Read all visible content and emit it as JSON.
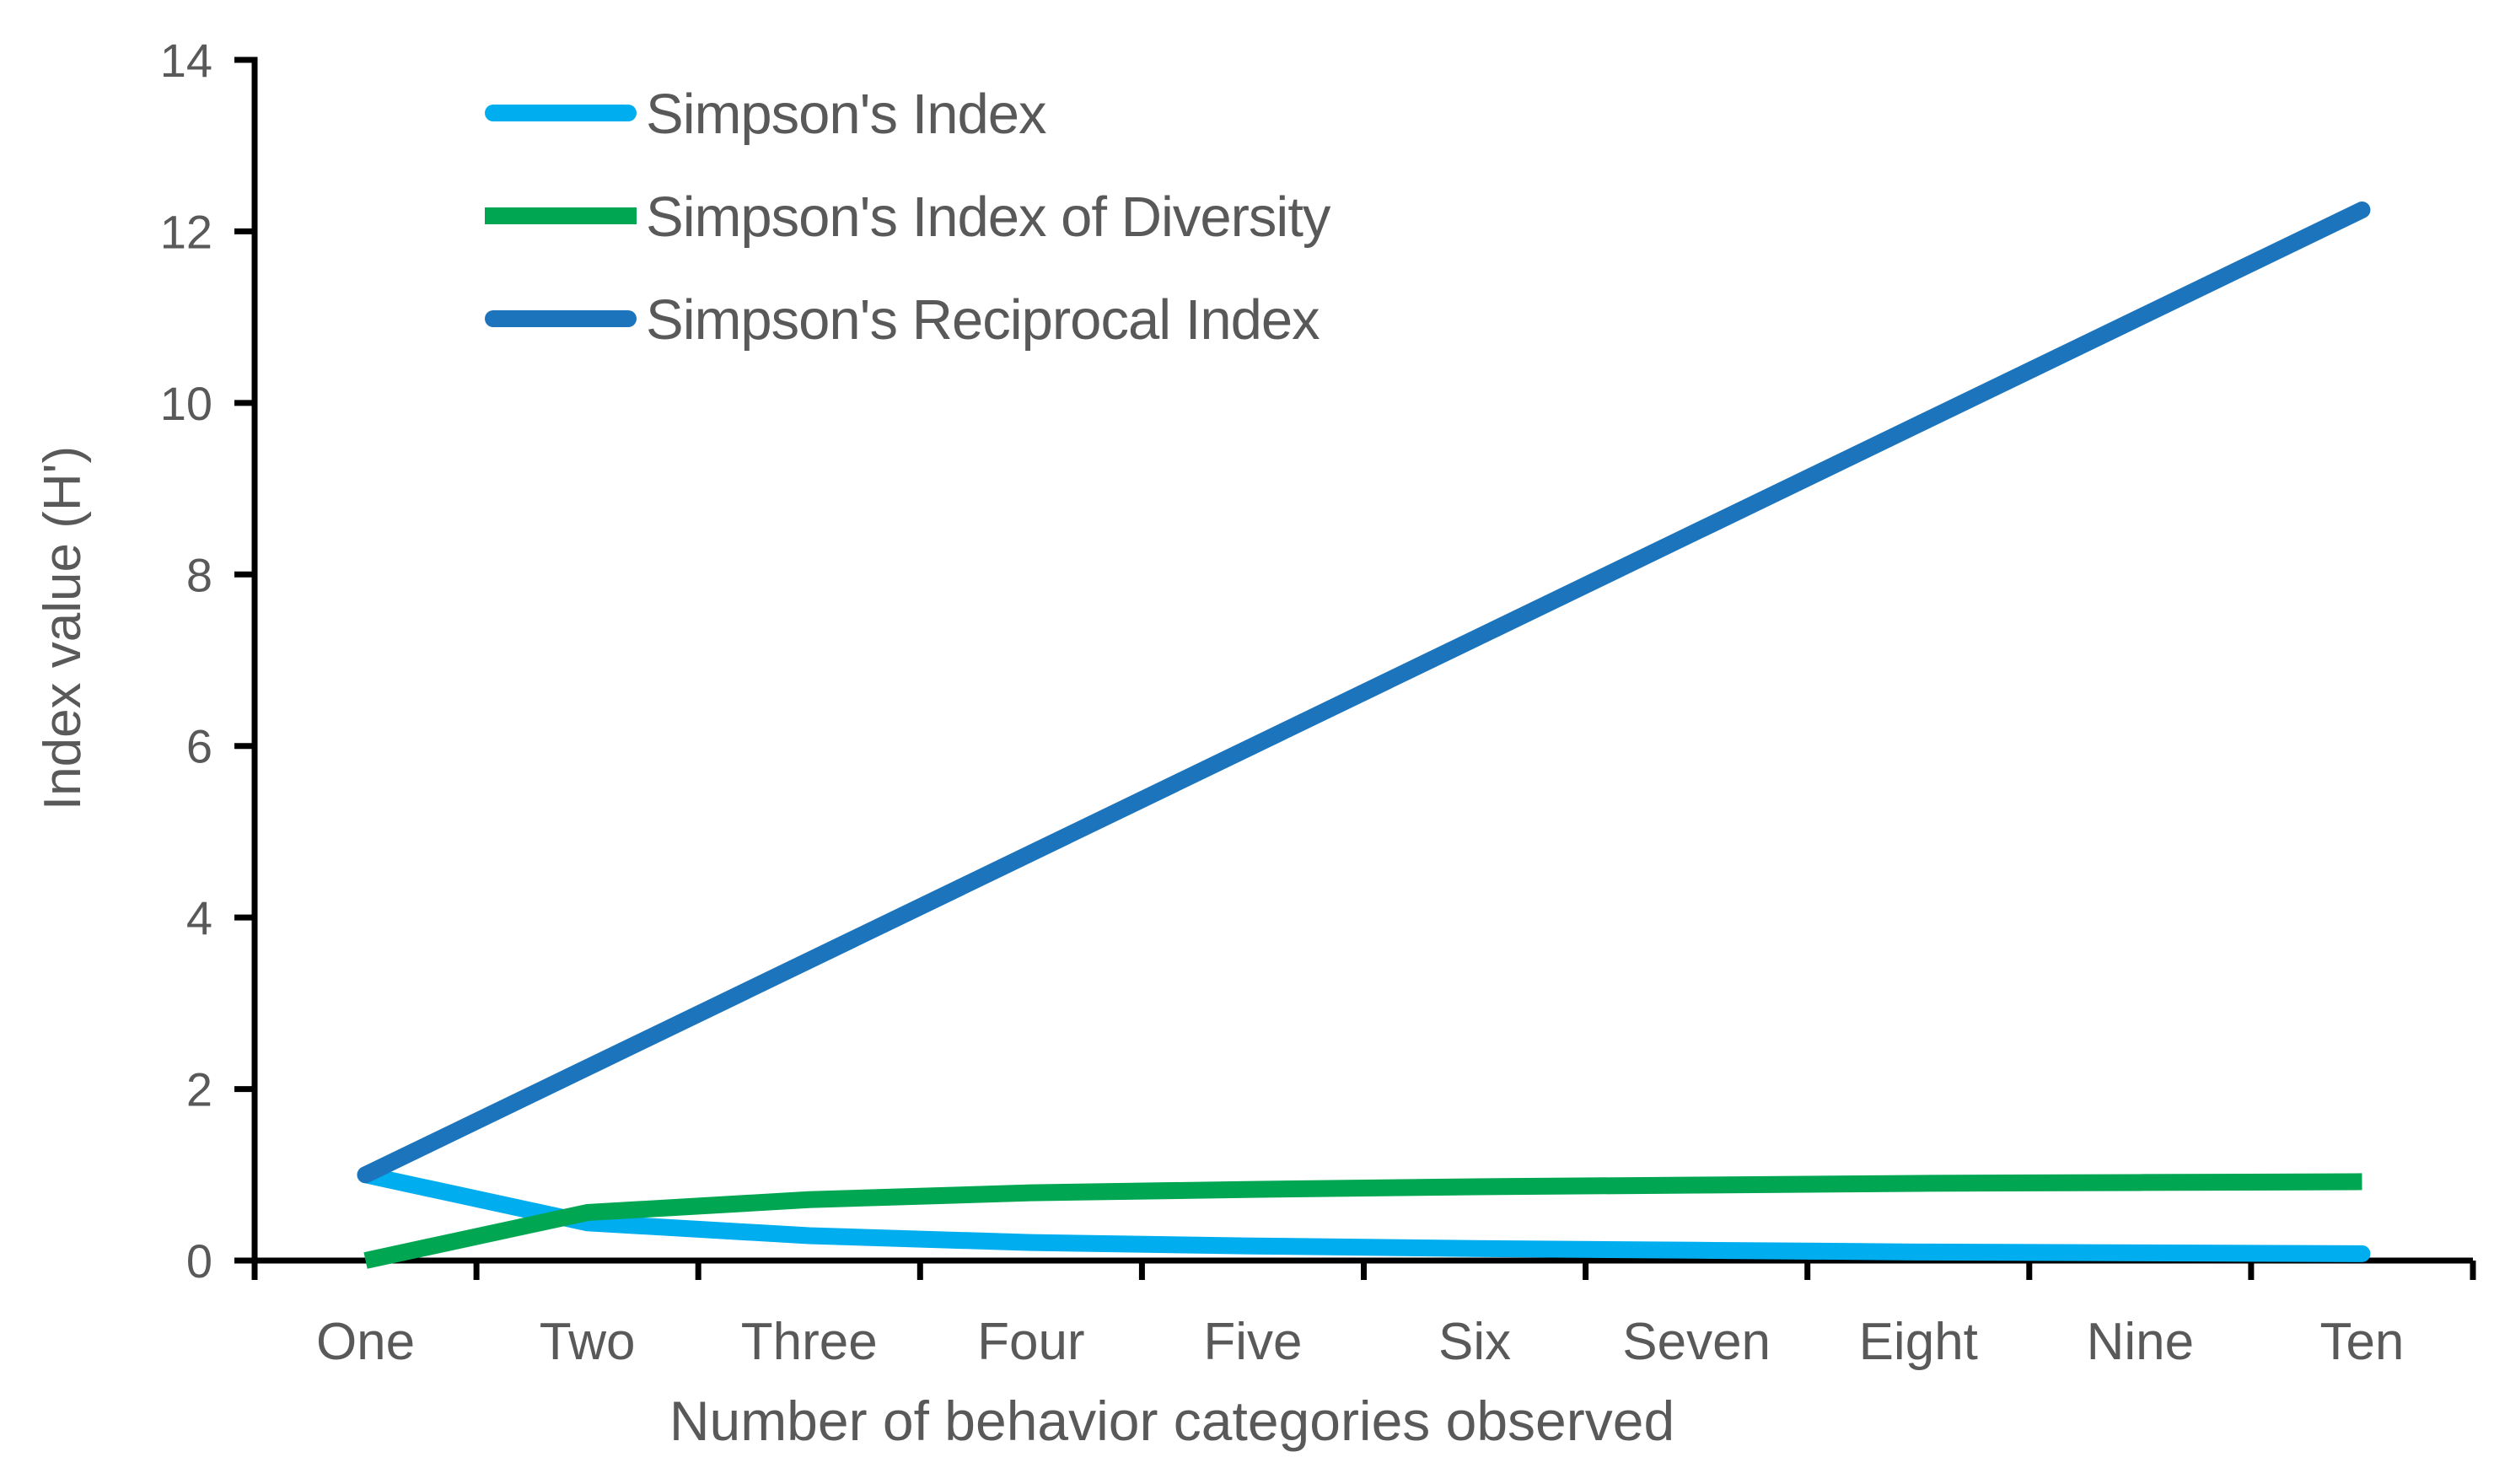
{
  "chart_data": {
    "type": "line",
    "title": "",
    "xlabel": "Number of behavior categories observed",
    "ylabel": "Index value (H')",
    "categories": [
      "One",
      "Two",
      "Three",
      "Four",
      "Five",
      "Six",
      "Seven",
      "Eight",
      "Nine",
      "Ten"
    ],
    "series": [
      {
        "name": "Simpson's Index",
        "color": "#00AEEF",
        "linecap": "round",
        "values": [
          1,
          0.44,
          0.29,
          0.21,
          0.17,
          0.14,
          0.12,
          0.1,
          0.09,
          0.08
        ]
      },
      {
        "name": "Simpson's Index of Diversity",
        "color": "#00A651",
        "linecap": "butt",
        "values": [
          0,
          0.56,
          0.71,
          0.79,
          0.83,
          0.86,
          0.88,
          0.9,
          0.91,
          0.92
        ]
      },
      {
        "name": "Simpson's Reciprocal Index",
        "color": "#1C75BC",
        "linecap": "round",
        "values": [
          1,
          2.25,
          3.5,
          4.75,
          6,
          7.25,
          8.5,
          9.75,
          11,
          12.25
        ]
      }
    ],
    "ylim": [
      0,
      14
    ],
    "y_ticks": [
      0,
      2,
      4,
      6,
      8,
      10,
      12,
      14
    ],
    "grid": false,
    "legend_position": "inside-top-left",
    "axis_color": "#000000",
    "text_color": "#595959",
    "background_color": "#FFFFFF"
  }
}
